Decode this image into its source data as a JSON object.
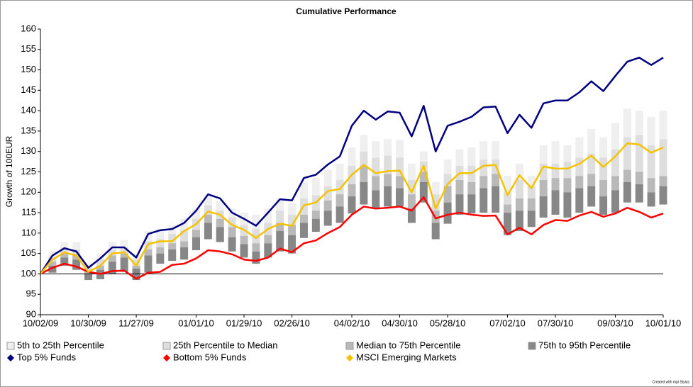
{
  "chart_data": {
    "type": "percentile_bands",
    "title": "Cumulative Performance",
    "y_label": "Growth of 100EUR",
    "credit": "Created with mpi Stylus",
    "categories": [
      "10/02/09",
      null,
      null,
      null,
      "10/30/09",
      null,
      null,
      null,
      "11/27/09",
      null,
      null,
      null,
      null,
      "01/01/10",
      null,
      null,
      null,
      "01/29/10",
      null,
      null,
      null,
      "02/26/10",
      null,
      null,
      null,
      null,
      "04/02/10",
      null,
      null,
      null,
      "04/30/10",
      null,
      null,
      null,
      "05/28/10",
      null,
      null,
      null,
      null,
      "07/02/10",
      null,
      null,
      null,
      "07/30/10",
      null,
      null,
      null,
      null,
      "09/03/10",
      null,
      null,
      null,
      "10/01/10"
    ],
    "ylim": [
      90,
      160
    ],
    "yticks": [
      90,
      95,
      100,
      105,
      110,
      115,
      120,
      125,
      130,
      135,
      140,
      145,
      150,
      155,
      160
    ],
    "baseline": 100,
    "series": [
      {
        "name": "5th to 25th Percentile",
        "kind": "band",
        "color": "#efefef",
        "values": [
          [
            100,
            100
          ],
          [
            104,
            105.5
          ],
          [
            106.5,
            107.8
          ],
          [
            106,
            107.8
          ],
          [
            101.5,
            102.5
          ],
          [
            103.5,
            105
          ],
          [
            106,
            107.8
          ],
          [
            106.5,
            108.3
          ],
          [
            103.5,
            105
          ],
          [
            108,
            110.5
          ],
          [
            108.5,
            111
          ],
          [
            109.8,
            112
          ],
          [
            110.8,
            113.5
          ],
          [
            113.5,
            116
          ],
          [
            116.8,
            119
          ],
          [
            115.5,
            117.8
          ],
          [
            113.8,
            116
          ],
          [
            112,
            115
          ],
          [
            111,
            114.5
          ],
          [
            112.5,
            116
          ],
          [
            115.5,
            118.5
          ],
          [
            114.5,
            117.3
          ],
          [
            118.5,
            122.5
          ],
          [
            119.3,
            123.5
          ],
          [
            121.5,
            125.5
          ],
          [
            123,
            127
          ],
          [
            126.5,
            131
          ],
          [
            130,
            134
          ],
          [
            128.5,
            132.5
          ],
          [
            129,
            133
          ],
          [
            128.5,
            132.8
          ],
          [
            123,
            127
          ],
          [
            127.5,
            130
          ],
          [
            119.5,
            122.5
          ],
          [
            124.5,
            128
          ],
          [
            126.5,
            130.5
          ],
          [
            126.5,
            131
          ],
          [
            128,
            132.5
          ],
          [
            128,
            132.5
          ],
          [
            120,
            124
          ],
          [
            123,
            127
          ],
          [
            121.5,
            124
          ],
          [
            127,
            131.5
          ],
          [
            127,
            132.5
          ],
          [
            127.5,
            131.5
          ],
          [
            128.5,
            133.5
          ],
          [
            129.5,
            135.5
          ],
          [
            128.5,
            133.5
          ],
          [
            130.5,
            137
          ],
          [
            133.5,
            140.5
          ],
          [
            134,
            140
          ],
          [
            131.5,
            138.5
          ],
          [
            133,
            140
          ]
        ]
      },
      {
        "name": "25th Percentile to Median",
        "kind": "band",
        "color": "#dedede",
        "values": [
          [
            100,
            100
          ],
          [
            103,
            104
          ],
          [
            105,
            106.5
          ],
          [
            104.5,
            106
          ],
          [
            100.7,
            101.5
          ],
          [
            102,
            103.5
          ],
          [
            104.5,
            106
          ],
          [
            105,
            106.5
          ],
          [
            102,
            103.5
          ],
          [
            106,
            108
          ],
          [
            106.5,
            108.5
          ],
          [
            107.5,
            109.8
          ],
          [
            108,
            110.8
          ],
          [
            110.8,
            113.5
          ],
          [
            114.5,
            116.8
          ],
          [
            113.5,
            115.5
          ],
          [
            111.5,
            113.8
          ],
          [
            109.3,
            112
          ],
          [
            107.5,
            111
          ],
          [
            109.5,
            112.5
          ],
          [
            112.5,
            115.5
          ],
          [
            112,
            114.5
          ],
          [
            114.5,
            118.5
          ],
          [
            115.5,
            119.3
          ],
          [
            118,
            121.5
          ],
          [
            119.5,
            123
          ],
          [
            122,
            126.5
          ],
          [
            126.5,
            130
          ],
          [
            124,
            128.5
          ],
          [
            124.5,
            129
          ],
          [
            124,
            128.5
          ],
          [
            119.5,
            123
          ],
          [
            125,
            127.5
          ],
          [
            115.5,
            119.5
          ],
          [
            121.5,
            124.5
          ],
          [
            123,
            126.5
          ],
          [
            122.5,
            126.5
          ],
          [
            124,
            128
          ],
          [
            124.5,
            128
          ],
          [
            117,
            120
          ],
          [
            118.5,
            123
          ],
          [
            118.5,
            121.5
          ],
          [
            123,
            127
          ],
          [
            123.5,
            127
          ],
          [
            123.5,
            127.5
          ],
          [
            124,
            128.5
          ],
          [
            124.5,
            129.5
          ],
          [
            123,
            128.5
          ],
          [
            124,
            130.5
          ],
          [
            125.5,
            133.5
          ],
          [
            125,
            134
          ],
          [
            123.5,
            131.5
          ],
          [
            124,
            133
          ]
        ]
      },
      {
        "name": "Median to 75th Percentile",
        "kind": "band",
        "color": "#b9b9b9",
        "values": [
          [
            100,
            100
          ],
          [
            102,
            103
          ],
          [
            104,
            105
          ],
          [
            103.5,
            104.5
          ],
          [
            100,
            100.7
          ],
          [
            101,
            102
          ],
          [
            103,
            104.5
          ],
          [
            104,
            105
          ],
          [
            101.3,
            102
          ],
          [
            104.5,
            106
          ],
          [
            105,
            106.5
          ],
          [
            106,
            107.5
          ],
          [
            106.5,
            108
          ],
          [
            109,
            110.8
          ],
          [
            112.5,
            114.5
          ],
          [
            111.5,
            113.5
          ],
          [
            109,
            111.5
          ],
          [
            107.3,
            109.3
          ],
          [
            105.5,
            107.5
          ],
          [
            107.5,
            109.5
          ],
          [
            110.5,
            112.5
          ],
          [
            109.5,
            112
          ],
          [
            112.5,
            114.5
          ],
          [
            113.5,
            115.5
          ],
          [
            115.5,
            118
          ],
          [
            116.5,
            119.5
          ],
          [
            119,
            122
          ],
          [
            122.5,
            126.5
          ],
          [
            120.5,
            124
          ],
          [
            121.5,
            124.5
          ],
          [
            121,
            124
          ],
          [
            116,
            119.5
          ],
          [
            122.5,
            125
          ],
          [
            112.5,
            115.5
          ],
          [
            117.5,
            121.5
          ],
          [
            119.5,
            123
          ],
          [
            119.5,
            122.5
          ],
          [
            121,
            124
          ],
          [
            121.5,
            124.5
          ],
          [
            115,
            117
          ],
          [
            115.5,
            118.5
          ],
          [
            115.5,
            118.5
          ],
          [
            119,
            123
          ],
          [
            120.5,
            123.5
          ],
          [
            120,
            123.5
          ],
          [
            121,
            124
          ],
          [
            121.5,
            124.5
          ],
          [
            119,
            123
          ],
          [
            120.5,
            124
          ],
          [
            122.5,
            125.5
          ],
          [
            122,
            125
          ],
          [
            120,
            123.5
          ],
          [
            121.5,
            124
          ]
        ]
      },
      {
        "name": "75th to 95th Percentile",
        "kind": "band",
        "color": "#878787",
        "values": [
          [
            100,
            100
          ],
          [
            100.3,
            102
          ],
          [
            102,
            104
          ],
          [
            101,
            103.5
          ],
          [
            98.5,
            100
          ],
          [
            98.7,
            101
          ],
          [
            100,
            103
          ],
          [
            100.5,
            104
          ],
          [
            98.5,
            101.3
          ],
          [
            100.3,
            104.5
          ],
          [
            102.5,
            105
          ],
          [
            103.2,
            106
          ],
          [
            103.5,
            106.5
          ],
          [
            105.8,
            109
          ],
          [
            108.5,
            112.5
          ],
          [
            107.8,
            111.5
          ],
          [
            105.5,
            109
          ],
          [
            104,
            107.3
          ],
          [
            102.5,
            105.5
          ],
          [
            104,
            107.5
          ],
          [
            105.5,
            110.5
          ],
          [
            105,
            109.5
          ],
          [
            108.8,
            112.5
          ],
          [
            110.3,
            113.5
          ],
          [
            111.8,
            115.5
          ],
          [
            112.5,
            116.5
          ],
          [
            114.8,
            119
          ],
          [
            117,
            122.5
          ],
          [
            116,
            120.5
          ],
          [
            116.5,
            121.5
          ],
          [
            116.5,
            121
          ],
          [
            112.5,
            116
          ],
          [
            117.5,
            122.5
          ],
          [
            108.5,
            112.5
          ],
          [
            112.3,
            117.5
          ],
          [
            114.5,
            119.5
          ],
          [
            114.8,
            119.5
          ],
          [
            115,
            121
          ],
          [
            115,
            121.5
          ],
          [
            109.5,
            115
          ],
          [
            110.5,
            115.5
          ],
          [
            111.5,
            115.5
          ],
          [
            113.8,
            119
          ],
          [
            114.5,
            120.5
          ],
          [
            113.8,
            120
          ],
          [
            115,
            121
          ],
          [
            116.5,
            121.5
          ],
          [
            114.5,
            119
          ],
          [
            115,
            120.5
          ],
          [
            117.5,
            122.5
          ],
          [
            117.5,
            122
          ],
          [
            116.5,
            120
          ],
          [
            117,
            121.5
          ]
        ]
      },
      {
        "name": "Top 5% Funds",
        "kind": "line",
        "color": "#000080",
        "values": [
          100,
          104.5,
          106.3,
          105.5,
          101.5,
          103.8,
          106.5,
          106.5,
          104,
          109.8,
          110.7,
          111,
          112.5,
          115.5,
          119.5,
          118.5,
          115,
          113.5,
          111.8,
          115,
          118.3,
          118,
          123.5,
          124.3,
          126.8,
          128.8,
          136.3,
          140,
          137.8,
          139.8,
          139.5,
          133.7,
          141.2,
          130,
          136.3,
          137.3,
          138.5,
          140.8,
          141,
          134.5,
          139,
          135.8,
          141.8,
          142.5,
          142.5,
          144.5,
          147.2,
          144.8,
          148.5,
          152,
          153,
          151.2,
          153
        ]
      },
      {
        "name": "Bottom 5% Funds",
        "kind": "line",
        "color": "#ff0000",
        "values": [
          100,
          101.5,
          102.5,
          101.8,
          100.5,
          100,
          100.7,
          100.8,
          98.8,
          100.3,
          100.5,
          102.2,
          102.5,
          103.8,
          105.8,
          105.5,
          104.8,
          103.5,
          103.2,
          104,
          106.2,
          105.3,
          107.5,
          108.2,
          110,
          111.5,
          114.5,
          116.5,
          116,
          116.2,
          116.5,
          115.5,
          118.8,
          113.6,
          114.5,
          115,
          114.5,
          114.2,
          114.3,
          109.7,
          111.3,
          109.7,
          112,
          113.2,
          113,
          114.3,
          115.2,
          114,
          114.8,
          116.2,
          115.2,
          113.8,
          114.8
        ]
      },
      {
        "name": "MSCI Emerging Markets",
        "kind": "line",
        "color": "#f5c200",
        "values": [
          100,
          103.5,
          105.3,
          104.5,
          100.5,
          102,
          105,
          105.3,
          102,
          107.3,
          108,
          108,
          110.5,
          112.2,
          115.3,
          114.5,
          112,
          110.8,
          108.8,
          111,
          112.3,
          111.8,
          116.8,
          117.5,
          120.3,
          120.8,
          124.3,
          126.7,
          124.7,
          125.2,
          125.3,
          120,
          126.5,
          116,
          122,
          124.7,
          124.7,
          126.5,
          126.7,
          119.3,
          124.2,
          121,
          126.3,
          125.8,
          125.8,
          127,
          129,
          126.2,
          128.8,
          132,
          131.7,
          129.7,
          131
        ]
      }
    ]
  }
}
